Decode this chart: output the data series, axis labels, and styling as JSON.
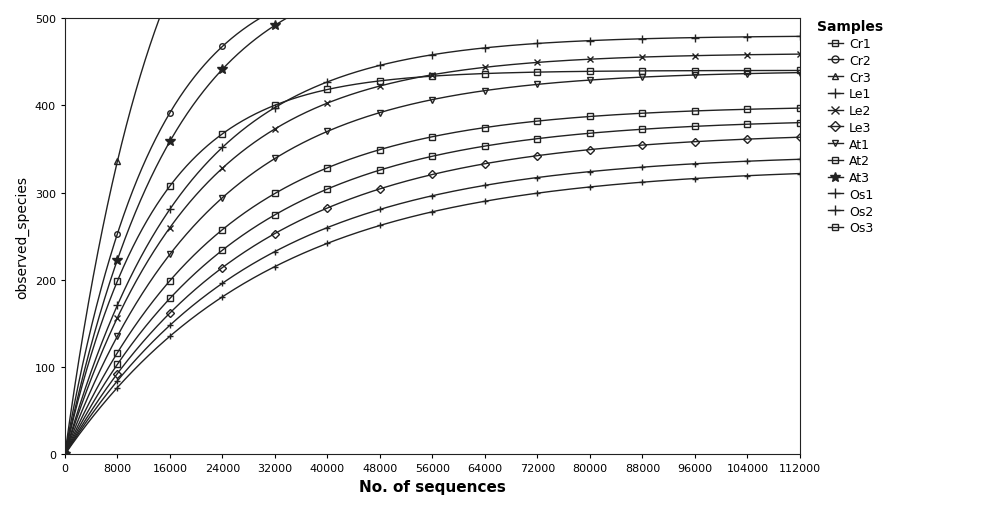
{
  "title": "",
  "xlabel": "No. of sequences",
  "ylabel": "observed_species",
  "xlim": [
    0,
    112000
  ],
  "ylim": [
    0,
    500
  ],
  "xticks": [
    0,
    8000,
    16000,
    24000,
    32000,
    40000,
    48000,
    56000,
    64000,
    72000,
    80000,
    88000,
    96000,
    104000,
    112000
  ],
  "yticks": [
    0,
    100,
    200,
    300,
    400,
    500
  ],
  "legend_title": "Samples",
  "bg_color": "#ffffff",
  "linewidth": 1.0,
  "color": "#222222",
  "samples": [
    {
      "name": "Cr1",
      "marker": "s",
      "fillstyle": "none",
      "ms": 4,
      "max_x": 112000,
      "A": 440,
      "k": 7.5e-05
    },
    {
      "name": "Cr2",
      "marker": "o",
      "fillstyle": "none",
      "ms": 4,
      "max_x": 48000,
      "A": 560,
      "k": 7.5e-05
    },
    {
      "name": "Cr3",
      "marker": "^",
      "fillstyle": "none",
      "ms": 5,
      "max_x": 40000,
      "A": 800,
      "k": 6.8e-05
    },
    {
      "name": "Le1",
      "marker": "+",
      "fillstyle": "full",
      "ms": 6,
      "max_x": 112000,
      "A": 480,
      "k": 5.5e-05
    },
    {
      "name": "Le2",
      "marker": "x",
      "fillstyle": "full",
      "ms": 5,
      "max_x": 112000,
      "A": 460,
      "k": 5.2e-05
    },
    {
      "name": "Le3",
      "marker": "D",
      "fillstyle": "none",
      "ms": 4,
      "max_x": 112000,
      "A": 370,
      "k": 3.6e-05
    },
    {
      "name": "At1",
      "marker": "v",
      "fillstyle": "none",
      "ms": 5,
      "max_x": 112000,
      "A": 440,
      "k": 4.6e-05
    },
    {
      "name": "At2",
      "marker": "s",
      "fillstyle": "none",
      "ms": 4,
      "max_x": 112000,
      "A": 400,
      "k": 4.3e-05
    },
    {
      "name": "At3",
      "marker": "*",
      "fillstyle": "full",
      "ms": 7,
      "max_x": 112000,
      "A": 570,
      "k": 6.2e-05
    },
    {
      "name": "Os1",
      "marker": "+",
      "fillstyle": "full",
      "ms": 5,
      "max_x": 112000,
      "A": 330,
      "k": 3.3e-05
    },
    {
      "name": "Os2",
      "marker": "+",
      "fillstyle": "full",
      "ms": 5,
      "max_x": 112000,
      "A": 345,
      "k": 3.5e-05
    },
    {
      "name": "Os3",
      "marker": "s",
      "fillstyle": "none",
      "ms": 4,
      "max_x": 112000,
      "A": 385,
      "k": 3.9e-05
    }
  ],
  "legend_entries": [
    {
      "name": "Cr1",
      "marker": "s",
      "fillstyle": "none",
      "ms": 5
    },
    {
      "name": "Cr2",
      "marker": "o",
      "fillstyle": "none",
      "ms": 5
    },
    {
      "name": "Cr3",
      "marker": "^",
      "fillstyle": "none",
      "ms": 5
    },
    {
      "name": "Le1",
      "marker": "+",
      "fillstyle": "full",
      "ms": 7
    },
    {
      "name": "Le2",
      "marker": "x",
      "fillstyle": "full",
      "ms": 6
    },
    {
      "name": "Le3",
      "marker": "D",
      "fillstyle": "none",
      "ms": 5
    },
    {
      "name": "At1",
      "marker": "v",
      "fillstyle": "none",
      "ms": 5
    },
    {
      "name": "At2",
      "marker": "s",
      "fillstyle": "none",
      "ms": 5
    },
    {
      "name": "At3",
      "marker": "*",
      "fillstyle": "full",
      "ms": 7
    },
    {
      "name": "Os1",
      "marker": "+",
      "fillstyle": "full",
      "ms": 7
    },
    {
      "name": "Os2",
      "marker": "+",
      "fillstyle": "full",
      "ms": 7
    },
    {
      "name": "Os3",
      "marker": "s",
      "fillstyle": "none",
      "ms": 5
    }
  ]
}
